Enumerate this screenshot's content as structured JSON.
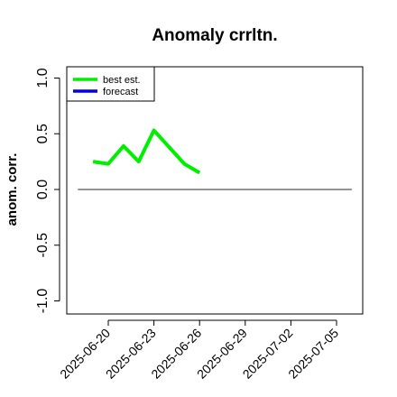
{
  "chart_data": {
    "type": "line",
    "title": "Anomaly crrltn.",
    "ylabel": "anom. corr.",
    "xlabel": "",
    "ylim": [
      -1.05,
      1.1
    ],
    "y_ticks": [
      1.0,
      0.5,
      0.0,
      -0.5,
      -1.0
    ],
    "y_tick_labels": [
      "1.0",
      "0.5",
      "0.0",
      "-0.5",
      "-1.0"
    ],
    "x_tick_labels": [
      "2025-06-20",
      "2025-06-23",
      "2025-06-26",
      "2025-06-29",
      "2025-07-02",
      "2025-07-05"
    ],
    "highlight_tick": "2025-06-26",
    "highlight_color": "#228B22",
    "reference_line": {
      "y": 0,
      "from": "2025-06-18",
      "to": "2025-07-06",
      "color": "#555555"
    },
    "legend": {
      "placement": "top-left",
      "entries": [
        {
          "label": "best est.",
          "color": "#00ee00"
        },
        {
          "label": "forecast",
          "color": "#0000ee"
        }
      ]
    },
    "series": [
      {
        "name": "best est.",
        "color": "#00ee00",
        "x": [
          "2025-06-19",
          "2025-06-20",
          "2025-06-21",
          "2025-06-22",
          "2025-06-23",
          "2025-06-24",
          "2025-06-25",
          "2025-06-26"
        ],
        "values": [
          0.25,
          0.23,
          0.39,
          0.25,
          0.53,
          0.38,
          0.23,
          0.15
        ]
      }
    ]
  }
}
